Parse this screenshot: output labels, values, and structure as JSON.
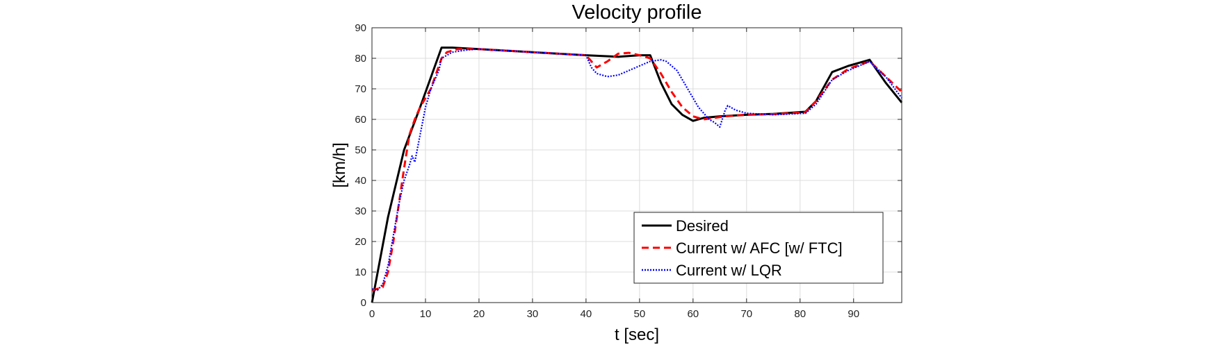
{
  "chart_data": {
    "type": "line",
    "title": "Velocity profile",
    "xlabel": "t [sec]",
    "ylabel": "[km/h]",
    "xlim": [
      0,
      99
    ],
    "ylim": [
      0,
      90
    ],
    "xticks": [
      0,
      10,
      20,
      30,
      40,
      50,
      60,
      70,
      80,
      90
    ],
    "yticks": [
      0,
      10,
      20,
      30,
      40,
      50,
      60,
      70,
      80,
      90
    ],
    "grid": true,
    "legend_position": "bottom-right",
    "series": [
      {
        "name": "Desired",
        "color": "#000000",
        "style": "solid",
        "points": [
          [
            0,
            0
          ],
          [
            3,
            28
          ],
          [
            6,
            50
          ],
          [
            9,
            64
          ],
          [
            13,
            83.5
          ],
          [
            15,
            83.5
          ],
          [
            20,
            83
          ],
          [
            30,
            82
          ],
          [
            40,
            81
          ],
          [
            46,
            80.5
          ],
          [
            50,
            81
          ],
          [
            52,
            81
          ],
          [
            54,
            72
          ],
          [
            56,
            65
          ],
          [
            58,
            61.5
          ],
          [
            60,
            59.5
          ],
          [
            62,
            60.5
          ],
          [
            65,
            61
          ],
          [
            70,
            61.5
          ],
          [
            75,
            61.8
          ],
          [
            81,
            62.5
          ],
          [
            83,
            66
          ],
          [
            86,
            75.5
          ],
          [
            89,
            77.5
          ],
          [
            93,
            79.5
          ],
          [
            96,
            72
          ],
          [
            99,
            65.5
          ]
        ]
      },
      {
        "name": "Current w/ AFC [w/ FTC]",
        "color": "#ff0000",
        "style": "dashed",
        "points": [
          [
            0,
            4
          ],
          [
            2,
            5
          ],
          [
            3,
            10
          ],
          [
            4,
            20
          ],
          [
            5,
            32
          ],
          [
            6,
            44
          ],
          [
            7,
            55
          ],
          [
            8,
            60
          ],
          [
            9,
            64
          ],
          [
            10,
            67
          ],
          [
            11,
            70
          ],
          [
            12,
            75
          ],
          [
            13,
            80
          ],
          [
            14,
            82
          ],
          [
            16,
            83
          ],
          [
            20,
            83
          ],
          [
            30,
            82
          ],
          [
            40,
            81
          ],
          [
            41,
            79
          ],
          [
            42,
            77
          ],
          [
            44,
            79
          ],
          [
            46,
            81.5
          ],
          [
            48,
            81.8
          ],
          [
            50,
            81
          ],
          [
            52,
            80
          ],
          [
            54,
            75
          ],
          [
            56,
            69
          ],
          [
            58,
            64
          ],
          [
            60,
            61
          ],
          [
            62,
            60
          ],
          [
            64,
            60.5
          ],
          [
            66,
            61
          ],
          [
            70,
            61.5
          ],
          [
            75,
            61.7
          ],
          [
            81,
            62.3
          ],
          [
            83,
            66
          ],
          [
            86,
            73
          ],
          [
            89,
            76.5
          ],
          [
            93,
            79
          ],
          [
            96,
            74
          ],
          [
            99,
            69
          ]
        ]
      },
      {
        "name": "Current w/ LQR",
        "color": "#0000ff",
        "style": "dotted",
        "points": [
          [
            0,
            4.5
          ],
          [
            1,
            4
          ],
          [
            2,
            6
          ],
          [
            3,
            12
          ],
          [
            4,
            22
          ],
          [
            5,
            32
          ],
          [
            6,
            40
          ],
          [
            7,
            45
          ],
          [
            7.5,
            48
          ],
          [
            8,
            46
          ],
          [
            9,
            55
          ],
          [
            10,
            64
          ],
          [
            11,
            70
          ],
          [
            12,
            74
          ],
          [
            12.5,
            76
          ],
          [
            13,
            80
          ],
          [
            15,
            82
          ],
          [
            18,
            82.8
          ],
          [
            20,
            83
          ],
          [
            30,
            82
          ],
          [
            40,
            81
          ],
          [
            41,
            77
          ],
          [
            42,
            75
          ],
          [
            44,
            74
          ],
          [
            46,
            74.5
          ],
          [
            48,
            76
          ],
          [
            50,
            77.5
          ],
          [
            52,
            79
          ],
          [
            54,
            79.5
          ],
          [
            55,
            79
          ],
          [
            57,
            76
          ],
          [
            59,
            70
          ],
          [
            61,
            64
          ],
          [
            63,
            60
          ],
          [
            64,
            59
          ],
          [
            65,
            57.5
          ],
          [
            66,
            63
          ],
          [
            66.5,
            64.5
          ],
          [
            68,
            63
          ],
          [
            70,
            62
          ],
          [
            75,
            61.5
          ],
          [
            81,
            62
          ],
          [
            83,
            65
          ],
          [
            86,
            73
          ],
          [
            89,
            76
          ],
          [
            93,
            79
          ],
          [
            96,
            74
          ],
          [
            99,
            67
          ]
        ]
      }
    ]
  }
}
